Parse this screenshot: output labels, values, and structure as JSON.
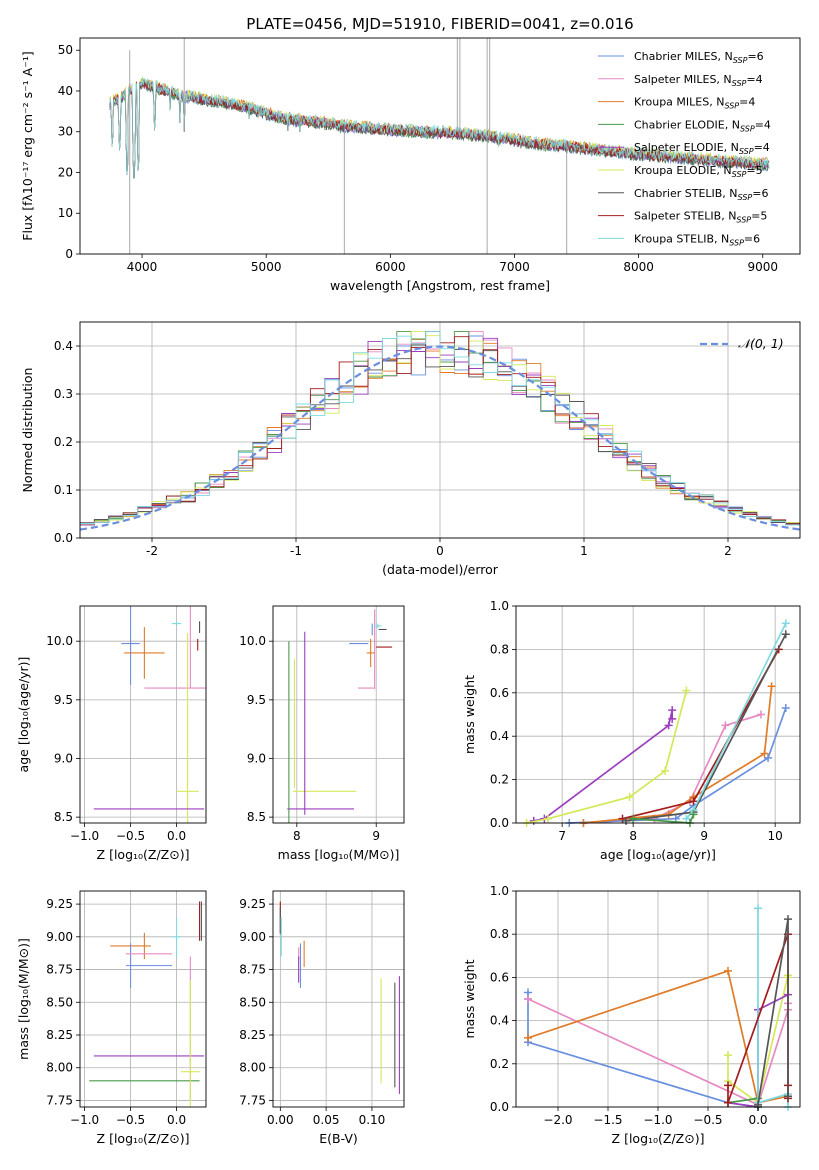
{
  "colors": {
    "chabrier_miles": "#6a8fe0",
    "salpeter_miles": "#e78ac3",
    "kroupa_miles": "#e07b28",
    "chabrier_elodie": "#4a9a4a",
    "salpeter_elodie": "#9b3fbf",
    "kroupa_elodie": "#d4e85a",
    "chabrier_stelib": "#555555",
    "salpeter_stelib": "#a31d1d",
    "kroupa_stelib": "#7fd9e0",
    "grid": "#b0b0b0",
    "normal_fit": "#6a8fe0"
  },
  "chart_data": [
    {
      "id": "spectrum",
      "type": "line",
      "title": "PLATE=0456, MJD=51910, FIBERID=0041, z=0.016",
      "xlabel": "wavelength [Angstrom, rest frame]",
      "ylabel": "Flux [fλ10⁻¹⁷ erg cm⁻² s⁻¹ A⁻¹]",
      "xlim": [
        3500,
        9300
      ],
      "ylim": [
        0,
        53
      ],
      "xticks": [
        4000,
        5000,
        6000,
        7000,
        8000,
        9000
      ],
      "yticks": [
        0,
        10,
        20,
        30,
        40,
        50
      ],
      "grid": false,
      "legend_position": "top-right",
      "legend": [
        {
          "label": "Chabrier MILES, N",
          "sub": "SSP",
          "n": "=6",
          "color_key": "chabrier_miles"
        },
        {
          "label": "Salpeter MILES, N",
          "sub": "SSP",
          "n": "=4",
          "color_key": "salpeter_miles"
        },
        {
          "label": "Kroupa MILES, N",
          "sub": "SSP",
          "n": "=4",
          "color_key": "kroupa_miles"
        },
        {
          "label": "Chabrier ELODIE, N",
          "sub": "SSP",
          "n": "=4",
          "color_key": "chabrier_elodie"
        },
        {
          "label": "Salpeter ELODIE, N",
          "sub": "SSP",
          "n": "=4",
          "color_key": "salpeter_elodie"
        },
        {
          "label": "Kroupa ELODIE, N",
          "sub": "SSP",
          "n": "=5",
          "color_key": "kroupa_elodie"
        },
        {
          "label": "Chabrier STELIB, N",
          "sub": "SSP",
          "n": "=6",
          "color_key": "chabrier_stelib"
        },
        {
          "label": "Salpeter STELIB, N",
          "sub": "SSP",
          "n": "=5",
          "color_key": "salpeter_stelib"
        },
        {
          "label": "Kroupa STELIB, N",
          "sub": "SSP",
          "n": "=6",
          "color_key": "kroupa_stelib"
        }
      ],
      "continuum": [
        [
          3740,
          37
        ],
        [
          3800,
          38
        ],
        [
          3900,
          40
        ],
        [
          4000,
          42
        ],
        [
          4100,
          41
        ],
        [
          4200,
          40
        ],
        [
          4300,
          39
        ],
        [
          4500,
          38
        ],
        [
          4700,
          37
        ],
        [
          4850,
          36
        ],
        [
          5000,
          34.5
        ],
        [
          5200,
          33
        ],
        [
          5400,
          32.5
        ],
        [
          5600,
          31.5
        ],
        [
          5800,
          31
        ],
        [
          6000,
          30.5
        ],
        [
          6300,
          30
        ],
        [
          6600,
          29.5
        ],
        [
          6900,
          28.5
        ],
        [
          7200,
          27
        ],
        [
          7400,
          26.5
        ],
        [
          7600,
          25.8
        ],
        [
          8000,
          24.5
        ],
        [
          8400,
          23.5
        ],
        [
          8800,
          22.5
        ],
        [
          9050,
          22
        ]
      ],
      "absorption_features": [
        [
          3760,
          24
        ],
        [
          3820,
          23
        ],
        [
          3880,
          17
        ],
        [
          3935,
          15
        ],
        [
          3970,
          18
        ],
        [
          4102,
          28
        ],
        [
          4227,
          34
        ],
        [
          4305,
          31
        ],
        [
          4340,
          30
        ],
        [
          4861,
          32
        ],
        [
          5175,
          29
        ],
        [
          5270,
          30
        ],
        [
          5890,
          28
        ],
        [
          6563,
          28
        ],
        [
          6870,
          24
        ],
        [
          7600,
          23
        ]
      ]
    },
    {
      "id": "residuals",
      "type": "histogram",
      "xlabel": "(data-model)/error",
      "ylabel": "Normed distribution",
      "xlim": [
        -2.5,
        2.5
      ],
      "ylim": [
        0,
        0.45
      ],
      "xticks": [
        -2,
        -1,
        0,
        1,
        2
      ],
      "yticks": [
        0.0,
        0.1,
        0.2,
        0.3,
        0.4
      ],
      "grid": true,
      "legend_position": "top-right",
      "legend": [
        {
          "label": "𝒩(0, 1)",
          "color_key": "normal_fit",
          "dashed": true
        }
      ],
      "normal_fit": {
        "mean": 0,
        "sigma": 1
      },
      "bin_width": 0.1
    },
    {
      "id": "age_vs_Z",
      "type": "errorbar",
      "xlabel": "Z [log₁₀(Z/Z⊙)]",
      "ylabel": "age  [log₁₀(age/yr)]",
      "xlim": [
        -1.05,
        0.32
      ],
      "ylim": [
        8.45,
        10.3
      ],
      "xticks": [
        -1.0,
        -0.5,
        0.0
      ],
      "xtick_labels": [
        "−1.0",
        "−0.5",
        "0.0"
      ],
      "yticks": [
        8.5,
        9.0,
        9.5,
        10.0
      ],
      "grid": true,
      "points": [
        {
          "color_key": "chabrier_miles",
          "x": -0.5,
          "y": 9.98,
          "xerr": 0.1,
          "yerr": 0.35
        },
        {
          "color_key": "kroupa_miles",
          "x": -0.35,
          "y": 9.9,
          "xerr": 0.22,
          "yerr": 0.22
        },
        {
          "color_key": "salpeter_miles",
          "x": 0.0,
          "y": 9.6,
          "xerr": 0.35,
          "yerr": 0.0
        },
        {
          "color_key": "kroupa_stelib",
          "x": 0.0,
          "y": 10.15,
          "xerr": 0.05,
          "yerr": 0.02
        },
        {
          "color_key": "salpeter_miles",
          "x": 0.15,
          "y": 10.0,
          "xerr": 0.0,
          "yerr": 0.4
        },
        {
          "color_key": "kroupa_elodie",
          "x": 0.12,
          "y": 8.72,
          "xerr": 0.12,
          "yerr": 1.35
        },
        {
          "color_key": "salpeter_elodie",
          "x": -0.3,
          "y": 8.57,
          "xerr": 0.6,
          "yerr": 0.0
        },
        {
          "color_key": "chabrier_stelib",
          "x": 0.25,
          "y": 10.12,
          "xerr": 0.0,
          "yerr": 0.05
        },
        {
          "color_key": "salpeter_stelib",
          "x": 0.23,
          "y": 9.97,
          "xerr": 0.0,
          "yerr": 0.05
        }
      ]
    },
    {
      "id": "age_vs_mass",
      "type": "errorbar",
      "xlabel": "mass [log₁₀(M/M⊙)]",
      "ylabel": "",
      "xlim": [
        7.7,
        9.35
      ],
      "ylim": [
        8.45,
        10.3
      ],
      "xticks": [
        8,
        9
      ],
      "yticks": [
        8.5,
        9.0,
        9.5,
        10.0
      ],
      "grid": true,
      "points": [
        {
          "color_key": "chabrier_elodie",
          "x": 7.9,
          "y": 9.2,
          "xerr": 0.0,
          "yerr": 0.8
        },
        {
          "color_key": "kroupa_elodie",
          "x": 7.97,
          "y": 9.3,
          "xerr": 0.0,
          "yerr": 0.55
        },
        {
          "color_key": "kroupa_elodie",
          "x": 8.35,
          "y": 8.72,
          "xerr": 0.4,
          "yerr": 0.0
        },
        {
          "color_key": "salpeter_elodie",
          "x": 8.1,
          "y": 9.3,
          "xerr": 0.0,
          "yerr": 0.78
        },
        {
          "color_key": "salpeter_elodie",
          "x": 8.3,
          "y": 8.57,
          "xerr": 0.42,
          "yerr": 0.0
        },
        {
          "color_key": "chabrier_miles",
          "x": 8.78,
          "y": 9.98,
          "xerr": 0.12,
          "yerr": 0.0
        },
        {
          "color_key": "chabrier_miles",
          "x": 8.95,
          "y": 10.1,
          "xerr": 0.0,
          "yerr": 0.05
        },
        {
          "color_key": "kroupa_miles",
          "x": 8.93,
          "y": 9.9,
          "xerr": 0.05,
          "yerr": 0.12
        },
        {
          "color_key": "salpeter_miles",
          "x": 8.87,
          "y": 9.6,
          "xerr": 0.1,
          "yerr": 0.0
        },
        {
          "color_key": "salpeter_miles",
          "x": 8.98,
          "y": 9.93,
          "xerr": 0.0,
          "yerr": 0.34
        },
        {
          "color_key": "kroupa_stelib",
          "x": 9.02,
          "y": 10.13,
          "xerr": 0.05,
          "yerr": 0.02
        },
        {
          "color_key": "salpeter_stelib",
          "x": 9.1,
          "y": 9.95,
          "xerr": 0.1,
          "yerr": 0.0
        },
        {
          "color_key": "chabrier_stelib",
          "x": 9.08,
          "y": 10.1,
          "xerr": 0.05,
          "yerr": 0.0
        }
      ]
    },
    {
      "id": "mass_weight_vs_age",
      "type": "line",
      "xlabel": "age  [log₁₀(age/yr)]",
      "ylabel": "mass weight",
      "xlim": [
        6.35,
        10.35
      ],
      "ylim": [
        0,
        1.0
      ],
      "xticks": [
        7,
        8,
        9,
        10
      ],
      "yticks": [
        0.0,
        0.2,
        0.4,
        0.6,
        0.8,
        1.0
      ],
      "grid": true,
      "series": [
        {
          "color_key": "salpeter_elodie",
          "x": [
            6.6,
            6.75,
            8.5,
            8.55,
            8.55
          ],
          "y": [
            0.01,
            0.02,
            0.45,
            0.52,
            0.48
          ]
        },
        {
          "color_key": "kroupa_elodie",
          "x": [
            6.5,
            6.8,
            7.95,
            8.45,
            8.75
          ],
          "y": [
            0.0,
            0.02,
            0.12,
            0.24,
            0.61
          ]
        },
        {
          "color_key": "salpeter_miles",
          "x": [
            7.3,
            8.3,
            8.8,
            9.3,
            9.8
          ],
          "y": [
            0.0,
            0.02,
            0.1,
            0.45,
            0.5
          ]
        },
        {
          "color_key": "chabrier_miles",
          "x": [
            7.1,
            8.6,
            8.85,
            9.9,
            10.15
          ],
          "y": [
            0.0,
            0.02,
            0.08,
            0.3,
            0.53
          ]
        },
        {
          "color_key": "kroupa_miles",
          "x": [
            7.3,
            8.5,
            8.85,
            9.85,
            9.95
          ],
          "y": [
            0.0,
            0.04,
            0.12,
            0.32,
            0.63
          ]
        },
        {
          "color_key": "salpeter_stelib",
          "x": [
            7.85,
            8.85,
            10.05
          ],
          "y": [
            0.02,
            0.1,
            0.8
          ]
        },
        {
          "color_key": "chabrier_stelib",
          "x": [
            7.9,
            8.85,
            10.15
          ],
          "y": [
            0.01,
            0.05,
            0.87
          ]
        },
        {
          "color_key": "kroupa_stelib",
          "x": [
            8.75,
            8.85,
            10.15
          ],
          "y": [
            0.02,
            0.06,
            0.92
          ]
        },
        {
          "color_key": "chabrier_elodie",
          "x": [
            8.0,
            8.8,
            8.85
          ],
          "y": [
            0.02,
            0.0,
            0.04
          ]
        }
      ]
    },
    {
      "id": "mass_vs_Z",
      "type": "errorbar",
      "xlabel": "Z [log₁₀(Z/Z⊙)]",
      "ylabel": "mass [log₁₀(M/M⊙)]",
      "xlim": [
        -1.05,
        0.32
      ],
      "ylim": [
        7.7,
        9.35
      ],
      "xticks": [
        -1.0,
        -0.5,
        0.0
      ],
      "xtick_labels": [
        "−1.0",
        "−0.5",
        "0.0"
      ],
      "yticks": [
        7.75,
        8.0,
        8.25,
        8.5,
        8.75,
        9.0,
        9.25
      ],
      "grid": true,
      "points": [
        {
          "color_key": "kroupa_miles",
          "x": -0.5,
          "y": 8.93,
          "xerr": 0.22,
          "yerr": 0.0
        },
        {
          "color_key": "kroupa_miles",
          "x": -0.35,
          "y": 8.93,
          "xerr": 0.0,
          "yerr": 0.1
        },
        {
          "color_key": "chabrier_miles",
          "x": -0.3,
          "y": 8.78,
          "xerr": 0.25,
          "yerr": 0.0
        },
        {
          "color_key": "chabrier_miles",
          "x": -0.5,
          "y": 8.78,
          "xerr": 0.0,
          "yerr": 0.17
        },
        {
          "color_key": "salpeter_miles",
          "x": -0.3,
          "y": 8.87,
          "xerr": 0.25,
          "yerr": 0.0
        },
        {
          "color_key": "salpeter_miles",
          "x": 0.15,
          "y": 8.3,
          "xerr": 0.0,
          "yerr": 0.55
        },
        {
          "color_key": "kroupa_stelib",
          "x": 0.0,
          "y": 9.0,
          "xerr": 0.05,
          "yerr": 0.15
        },
        {
          "color_key": "salpeter_elodie",
          "x": -0.3,
          "y": 8.09,
          "xerr": 0.6,
          "yerr": 0.0
        },
        {
          "color_key": "chabrier_elodie",
          "x": -0.35,
          "y": 7.9,
          "xerr": 0.6,
          "yerr": 0.0
        },
        {
          "color_key": "kroupa_elodie",
          "x": 0.15,
          "y": 7.97,
          "xerr": 0.1,
          "yerr": 0.7
        },
        {
          "color_key": "salpeter_stelib",
          "x": 0.25,
          "y": 9.12,
          "xerr": 0.0,
          "yerr": 0.15
        },
        {
          "color_key": "chabrier_stelib",
          "x": 0.27,
          "y": 9.12,
          "xerr": 0.0,
          "yerr": 0.15
        }
      ]
    },
    {
      "id": "mass_vs_ebv",
      "type": "errorbar",
      "xlabel": "E(B-V)",
      "ylabel": "",
      "xlim": [
        -0.008,
        0.135
      ],
      "ylim": [
        7.7,
        9.35
      ],
      "xticks": [
        0.0,
        0.05,
        0.1
      ],
      "xtick_labels": [
        "0.00",
        "0.05",
        "0.10"
      ],
      "yticks": [
        7.75,
        8.0,
        8.25,
        8.5,
        8.75,
        9.0,
        9.25
      ],
      "grid": true,
      "points": [
        {
          "color_key": "salpeter_stelib",
          "x": 0.0,
          "y": 9.15,
          "xerr": 0.0,
          "yerr": 0.12
        },
        {
          "color_key": "chabrier_stelib",
          "x": 0.0,
          "y": 9.12,
          "xerr": 0.0,
          "yerr": 0.1
        },
        {
          "color_key": "kroupa_stelib",
          "x": 0.001,
          "y": 9.0,
          "xerr": 0.0,
          "yerr": 0.15
        },
        {
          "color_key": "salpeter_miles",
          "x": 0.02,
          "y": 8.87,
          "xerr": 0.0,
          "yerr": 0.05
        },
        {
          "color_key": "chabrier_miles",
          "x": 0.022,
          "y": 8.78,
          "xerr": 0.0,
          "yerr": 0.17
        },
        {
          "color_key": "salpeter_elodie",
          "x": 0.02,
          "y": 8.75,
          "xerr": 0.0,
          "yerr": 0.1
        },
        {
          "color_key": "kroupa_miles",
          "x": 0.026,
          "y": 8.87,
          "xerr": 0.0,
          "yerr": 0.1
        },
        {
          "color_key": "kroupa_elodie",
          "x": 0.11,
          "y": 8.28,
          "xerr": 0.0,
          "yerr": 0.4
        },
        {
          "color_key": "chabrier_stelib",
          "x": 0.125,
          "y": 8.25,
          "xerr": 0.0,
          "yerr": 0.4
        },
        {
          "color_key": "salpeter_elodie",
          "x": 0.13,
          "y": 8.25,
          "xerr": 0.0,
          "yerr": 0.45
        }
      ]
    },
    {
      "id": "mass_weight_vs_Z",
      "type": "line",
      "xlabel": "Z [log₁₀(Z/Z⊙)]",
      "ylabel": "mass weight",
      "xlim": [
        -2.42,
        0.42
      ],
      "ylim": [
        0,
        1.0
      ],
      "xticks": [
        -2.0,
        -1.5,
        -1.0,
        -0.5,
        0.0
      ],
      "xtick_labels": [
        "−2.0",
        "−1.5",
        "−1.0",
        "−0.5",
        "0.0"
      ],
      "yticks": [
        0.0,
        0.2,
        0.4,
        0.6,
        0.8,
        1.0
      ],
      "grid": true,
      "series": [
        {
          "color_key": "chabrier_miles",
          "x": [
            -2.3,
            -2.3,
            -2.3,
            -0.3,
            0.0
          ],
          "y": [
            0.53,
            0.5,
            0.3,
            0.02,
            0.0
          ]
        },
        {
          "color_key": "salpeter_miles",
          "x": [
            -2.3,
            0.0,
            0.3,
            0.3
          ],
          "y": [
            0.5,
            0.01,
            0.45,
            0.48
          ]
        },
        {
          "color_key": "kroupa_miles",
          "x": [
            -2.3,
            -0.3,
            0.0,
            0.3
          ],
          "y": [
            0.32,
            0.63,
            0.02,
            0.05
          ]
        },
        {
          "color_key": "kroupa_elodie",
          "x": [
            -0.3,
            -0.3,
            0.0,
            0.3,
            0.3
          ],
          "y": [
            0.24,
            0.12,
            0.02,
            0.61,
            0.6
          ]
        },
        {
          "color_key": "salpeter_elodie",
          "x": [
            -0.3,
            0.0,
            0.0,
            0.3
          ],
          "y": [
            0.02,
            0.0,
            0.45,
            0.52
          ]
        },
        {
          "color_key": "chabrier_elodie",
          "x": [
            -0.3,
            0.0,
            0.0
          ],
          "y": [
            0.02,
            0.04,
            0.0
          ]
        },
        {
          "color_key": "kroupa_stelib",
          "x": [
            0.0,
            0.0,
            0.3,
            0.3
          ],
          "y": [
            0.92,
            0.02,
            0.06,
            0.0
          ]
        },
        {
          "color_key": "salpeter_stelib",
          "x": [
            -0.3,
            -0.3,
            0.3,
            0.3,
            0.3
          ],
          "y": [
            0.1,
            0.02,
            0.8,
            0.1,
            0.04
          ]
        },
        {
          "color_key": "chabrier_stelib",
          "x": [
            0.0,
            0.3,
            0.3
          ],
          "y": [
            0.01,
            0.87,
            0.05
          ]
        }
      ]
    }
  ]
}
